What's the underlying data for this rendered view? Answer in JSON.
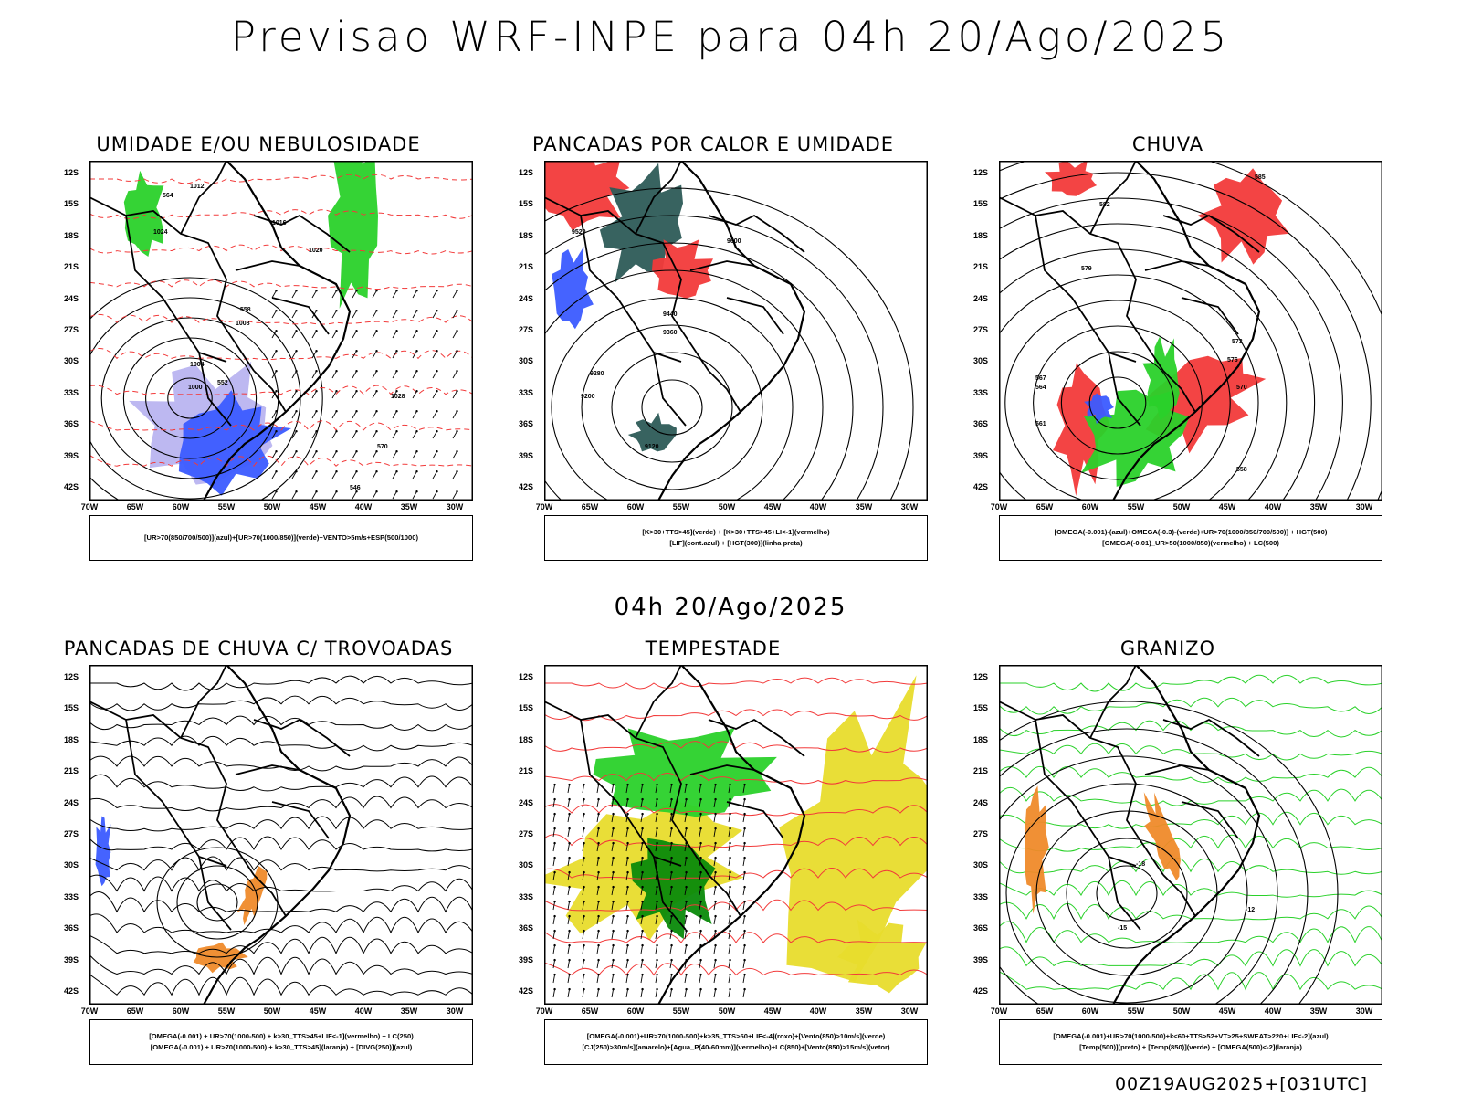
{
  "title": "Previsao WRF-INPE  para 04h 20/Ago/2025",
  "subtitle": "04h 20/Ago/2025",
  "footer": "00Z19AUG2025+[031UTC]",
  "axes": {
    "lat": [
      "12S",
      "15S",
      "18S",
      "21S",
      "24S",
      "27S",
      "30S",
      "33S",
      "36S",
      "39S",
      "42S"
    ],
    "lon": [
      "70W",
      "65W",
      "60W",
      "55W",
      "50W",
      "45W",
      "40W",
      "35W",
      "30W"
    ]
  },
  "colors": {
    "blue": "#3b5bff",
    "green": "#2ad12a",
    "red": "#f23a3a",
    "orange": "#ef8a2a",
    "yellow": "#e8dc2c",
    "teal": "#2d5b57",
    "lightblue": "#b9b4f0",
    "darkgreen": "#0a8a0a"
  },
  "panels": [
    {
      "title": "UMIDADE E/OU NEBULOSIDADE",
      "legend": [
        "[UR>70(850/700/500)](azul)+[UR>70(1000/850)](verde)+VENTO>5m/s+ESP(500/1000)"
      ],
      "labels": [
        "1012",
        "1016",
        "1020",
        "1024",
        "1008",
        "1004",
        "1000",
        "1028",
        "570",
        "564",
        "558",
        "552",
        "546"
      ]
    },
    {
      "title": "PANCADAS POR CALOR E UMIDADE",
      "legend": [
        "[K>30+TTS>45](verde) + [K>30+TTS>45+LI<-1](vermelho)",
        "[LIF](cont.azul) + [HGT(300)](linha preta)"
      ],
      "labels": [
        "9520",
        "9600",
        "9440",
        "9360",
        "9280",
        "9200",
        "9120"
      ]
    },
    {
      "title": "CHUVA",
      "legend": [
        "[OMEGA(-0.001)-(azul)+OMEGA(-0.3)-(verde)+UR>70(1000/850/700/500)] + HGT(500)",
        "[OMEGA(-0.01)_UR>50(1000/850)(vermelho) + LC(500)"
      ],
      "labels": [
        "585",
        "582",
        "579",
        "576",
        "573",
        "570",
        "567",
        "564",
        "561",
        "558"
      ]
    },
    {
      "title": "PANCADAS DE CHUVA C/ TROVOADAS",
      "legend": [
        "[OMEGA(-0.001) + UR>70(1000-500) + k>30_TTS>45+LIF<-1](vermelho) + LC(250)",
        "[OMEGA(-0.001) + UR>70(1000-500) + k>30_TTS>45](laranja) + [DIVG(250)](azul)"
      ],
      "labels": []
    },
    {
      "title": "TEMPESTADE",
      "legend": [
        "[OMEGA(-0.001)+UR>70(1000-500)+k>35_TTS>50+LIF<-4](roxo)+[Vento(850)>10m/s](verde)",
        "[CJ(250)>30m/s](amarelo)+[Agua_P(40-60mm)](vermelho)+LC(850)+[Vento(850)>15m/s](vetor)"
      ],
      "labels": []
    },
    {
      "title": "GRANIZO",
      "legend": [
        "[OMEGA(-0.001)+UR>70(1000-500)+k<60+TTS>52+VT>25+SWEAT>220+LIF<-2](azul)",
        "[Temp(500)](preto) + [Temp(850)](verde) + [OMEGA(500)<-2](laranja)"
      ],
      "labels": [
        "-12",
        "-15",
        "-18"
      ]
    }
  ]
}
